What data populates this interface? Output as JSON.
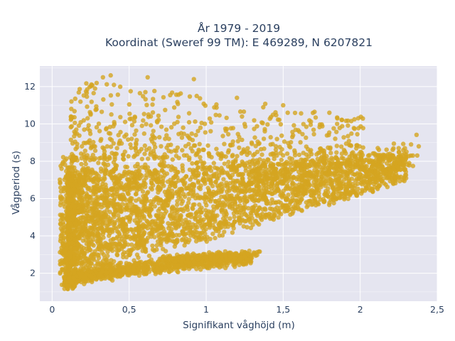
{
  "chart_data": {
    "type": "scatter",
    "title_lines": [
      "År 1979 - 2019",
      "Koordinat (Sweref 99 TM): E 469289, N 6207821"
    ],
    "xlabel": "Signifikant våghöjd (m)",
    "ylabel": "Vågperiod (s)",
    "xlim": [
      -0.08,
      2.5
    ],
    "ylim": [
      0.5,
      13.1
    ],
    "x_ticks": [
      0,
      0.5,
      1,
      1.5,
      2,
      2.5
    ],
    "x_tick_labels": [
      "0",
      "0,5",
      "1",
      "1,5",
      "2",
      "2,5"
    ],
    "y_ticks": [
      2,
      4,
      6,
      8,
      10,
      12
    ],
    "y_tick_labels": [
      "2",
      "4",
      "6",
      "8",
      "10",
      "12"
    ],
    "grid": true,
    "marker_color": "#D4A520",
    "plot_background": "#E5E5F0",
    "series": [
      {
        "points_sample": [
          [
            0.1,
            1.2
          ],
          [
            0.2,
            1.8
          ],
          [
            0.3,
            2.2
          ],
          [
            0.5,
            2.5
          ],
          [
            0.8,
            2.8
          ],
          [
            1.0,
            2.9
          ],
          [
            1.15,
            3.1
          ],
          [
            1.28,
            3.2
          ],
          [
            0.2,
            5.0
          ],
          [
            0.3,
            6.5
          ],
          [
            0.5,
            7.0
          ],
          [
            0.8,
            7.2
          ],
          [
            1.0,
            7.0
          ],
          [
            1.3,
            7.5
          ],
          [
            1.6,
            7.8
          ],
          [
            1.9,
            8.0
          ],
          [
            2.1,
            8.3
          ],
          [
            2.25,
            8.7
          ],
          [
            2.38,
            8.8
          ],
          [
            0.33,
            12.5
          ],
          [
            0.38,
            12.6
          ],
          [
            0.62,
            12.5
          ],
          [
            0.92,
            12.4
          ],
          [
            1.2,
            11.4
          ],
          [
            1.5,
            11.0
          ],
          [
            1.8,
            10.6
          ],
          [
            1.85,
            10.0
          ],
          [
            0.15,
            9.5
          ],
          [
            0.25,
            10.5
          ]
        ]
      }
    ]
  }
}
